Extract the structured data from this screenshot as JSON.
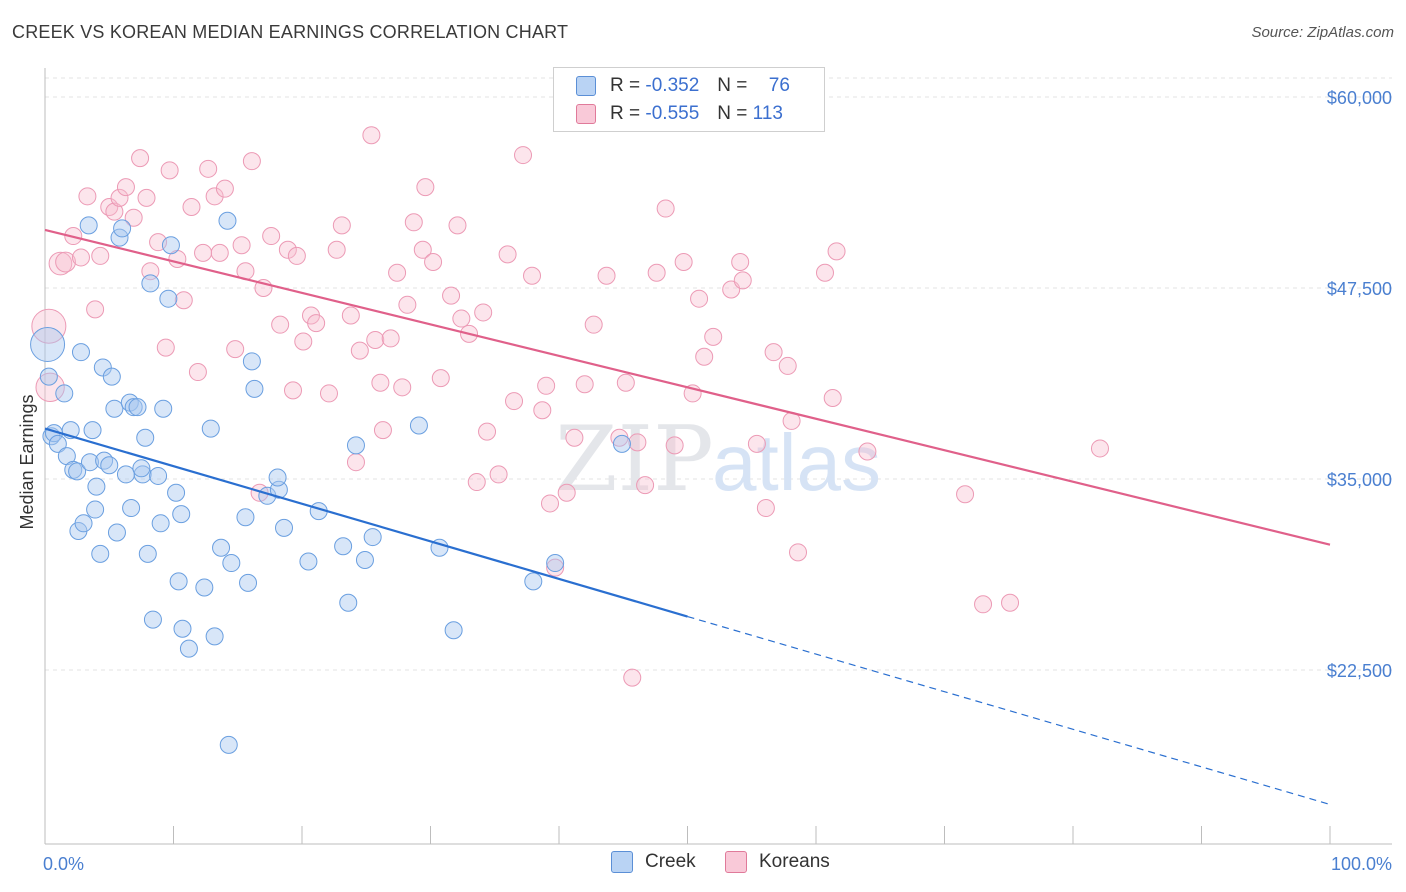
{
  "title": "CREEK VS KOREAN MEDIAN EARNINGS CORRELATION CHART",
  "source": "Source: ZipAtlas.com",
  "watermark": "ZIPatlas",
  "legend": {
    "rows": [
      {
        "r_label": "R =",
        "r_value": "-0.352",
        "n_label": "N =",
        "n_value": "76",
        "color": "#a9c8f0",
        "border": "#5b8fd6"
      },
      {
        "r_label": "R =",
        "r_value": "-0.555",
        "n_label": "N =",
        "n_value": "113",
        "color": "#f7bfd0",
        "border": "#e07a9a"
      }
    ]
  },
  "bottom_legend": [
    {
      "label": "Creek",
      "color": "#a9c8f0",
      "border": "#5b8fd6"
    },
    {
      "label": "Koreans",
      "color": "#f7bfd0",
      "border": "#e07a9a"
    }
  ],
  "chart_data": {
    "type": "scatter",
    "title": "CREEK VS KOREAN MEDIAN EARNINGS CORRELATION CHART",
    "ylabel": "Median Earnings",
    "xlabel": "",
    "x_tick_labels": [
      "0.0%",
      "100.0%"
    ],
    "y_tick_labels": [
      "$22,500",
      "$35,000",
      "$47,500",
      "$60,000"
    ],
    "y_ticks": [
      22500,
      35000,
      47500,
      60000
    ],
    "xlim": [
      0,
      100
    ],
    "ylim": [
      11500,
      61500
    ],
    "grid": true,
    "legend_position": "top-center",
    "series": [
      {
        "name": "Creek",
        "color": "#6a9fe0",
        "trend": {
          "x0": 0,
          "y0": 38300,
          "x1": 50,
          "y1": 26000,
          "dashed_to_x": 100,
          "dashed_to_y": 13700,
          "color": "#2a6fd0"
        },
        "points": [
          [
            0.2,
            43800,
            24
          ],
          [
            0.3,
            41700,
            12
          ],
          [
            0.5,
            37800,
            12
          ],
          [
            0.7,
            38000,
            12
          ],
          [
            1.0,
            37300,
            12
          ],
          [
            1.5,
            40600,
            12
          ],
          [
            1.7,
            36500,
            12
          ],
          [
            2.0,
            38200,
            12
          ],
          [
            2.2,
            35600,
            12
          ],
          [
            2.5,
            35500,
            12
          ],
          [
            2.6,
            31600,
            12
          ],
          [
            2.8,
            43300,
            12
          ],
          [
            3.0,
            32100,
            12
          ],
          [
            3.4,
            51600,
            12
          ],
          [
            3.5,
            36100,
            12
          ],
          [
            3.7,
            38200,
            12
          ],
          [
            3.9,
            33000,
            12
          ],
          [
            4.0,
            34500,
            12
          ],
          [
            4.3,
            30100,
            12
          ],
          [
            4.5,
            42300,
            12
          ],
          [
            4.6,
            36200,
            12
          ],
          [
            5.0,
            35900,
            12
          ],
          [
            5.2,
            41700,
            12
          ],
          [
            5.4,
            39600,
            12
          ],
          [
            5.6,
            31500,
            12
          ],
          [
            5.8,
            50800,
            12
          ],
          [
            6.0,
            51400,
            12
          ],
          [
            6.3,
            35300,
            12
          ],
          [
            6.6,
            40000,
            12
          ],
          [
            6.7,
            33100,
            12
          ],
          [
            6.9,
            39700,
            12
          ],
          [
            7.2,
            39700,
            12
          ],
          [
            7.6,
            35300,
            12
          ],
          [
            7.8,
            37700,
            12
          ],
          [
            8.0,
            30100,
            12
          ],
          [
            8.2,
            47800,
            12
          ],
          [
            8.4,
            25800,
            12
          ],
          [
            8.8,
            35200,
            12
          ],
          [
            9.0,
            32100,
            12
          ],
          [
            9.2,
            39600,
            12
          ],
          [
            9.6,
            46800,
            12
          ],
          [
            9.8,
            50300,
            12
          ],
          [
            10.2,
            34100,
            12
          ],
          [
            10.4,
            28300,
            12
          ],
          [
            10.6,
            32700,
            12
          ],
          [
            10.7,
            25200,
            12
          ],
          [
            11.2,
            23900,
            12
          ],
          [
            12.4,
            27900,
            12
          ],
          [
            12.9,
            38300,
            12
          ],
          [
            13.2,
            24700,
            12
          ],
          [
            13.7,
            30500,
            12
          ],
          [
            14.2,
            51900,
            12
          ],
          [
            14.5,
            29500,
            12
          ],
          [
            14.3,
            17600,
            12
          ],
          [
            15.6,
            32500,
            12
          ],
          [
            15.8,
            28200,
            12
          ],
          [
            16.1,
            42700,
            12
          ],
          [
            16.3,
            40900,
            12
          ],
          [
            17.3,
            33900,
            12
          ],
          [
            18.2,
            34300,
            12
          ],
          [
            18.6,
            31800,
            12
          ],
          [
            20.5,
            29600,
            12
          ],
          [
            21.3,
            32900,
            12
          ],
          [
            23.2,
            30600,
            12
          ],
          [
            23.6,
            26900,
            12
          ],
          [
            24.2,
            37200,
            12
          ],
          [
            24.9,
            29700,
            12
          ],
          [
            25.5,
            31200,
            12
          ],
          [
            29.1,
            38500,
            12
          ],
          [
            30.7,
            30500,
            12
          ],
          [
            31.8,
            25100,
            12
          ],
          [
            38.0,
            28300,
            12
          ],
          [
            39.7,
            29500,
            12
          ],
          [
            44.9,
            37300,
            12
          ],
          [
            18.1,
            35100,
            12
          ],
          [
            7.5,
            35700,
            12
          ]
        ]
      },
      {
        "name": "Koreans",
        "color": "#f29ab6",
        "trend": {
          "x0": 0,
          "y0": 51300,
          "x1": 100,
          "y1": 30700,
          "color": "#e0608a"
        },
        "points": [
          [
            0.3,
            45000,
            24
          ],
          [
            0.4,
            41000,
            20
          ],
          [
            1.2,
            49100,
            16
          ],
          [
            1.6,
            49200,
            14
          ],
          [
            2.2,
            50900,
            12
          ],
          [
            2.8,
            49500,
            12
          ],
          [
            3.3,
            53500,
            12
          ],
          [
            3.9,
            46100,
            12
          ],
          [
            4.3,
            49600,
            12
          ],
          [
            5.0,
            52800,
            12
          ],
          [
            5.4,
            52500,
            12
          ],
          [
            5.8,
            53400,
            12
          ],
          [
            6.3,
            54100,
            12
          ],
          [
            6.9,
            52100,
            12
          ],
          [
            7.4,
            56000,
            12
          ],
          [
            7.9,
            53400,
            12
          ],
          [
            8.2,
            48600,
            12
          ],
          [
            8.8,
            50500,
            12
          ],
          [
            9.4,
            43600,
            12
          ],
          [
            9.7,
            55200,
            12
          ],
          [
            10.3,
            49400,
            12
          ],
          [
            10.8,
            46700,
            12
          ],
          [
            11.4,
            52800,
            12
          ],
          [
            11.9,
            42000,
            12
          ],
          [
            12.3,
            49800,
            12
          ],
          [
            12.7,
            55300,
            12
          ],
          [
            13.2,
            53500,
            12
          ],
          [
            13.6,
            49800,
            12
          ],
          [
            14.0,
            54000,
            12
          ],
          [
            14.8,
            43500,
            12
          ],
          [
            15.3,
            50300,
            12
          ],
          [
            15.6,
            48600,
            12
          ],
          [
            16.1,
            55800,
            12
          ],
          [
            16.7,
            34100,
            12
          ],
          [
            17.0,
            47500,
            12
          ],
          [
            17.6,
            50900,
            12
          ],
          [
            18.3,
            45100,
            12
          ],
          [
            18.9,
            50000,
            12
          ],
          [
            19.3,
            40800,
            12
          ],
          [
            19.6,
            49600,
            12
          ],
          [
            20.1,
            44000,
            12
          ],
          [
            20.7,
            45700,
            12
          ],
          [
            21.1,
            45200,
            12
          ],
          [
            22.1,
            40600,
            12
          ],
          [
            22.7,
            50000,
            12
          ],
          [
            23.1,
            51600,
            12
          ],
          [
            23.8,
            45700,
            12
          ],
          [
            24.2,
            36100,
            12
          ],
          [
            24.5,
            43400,
            12
          ],
          [
            25.4,
            57500,
            12
          ],
          [
            25.7,
            44100,
            12
          ],
          [
            26.1,
            41300,
            12
          ],
          [
            26.9,
            44200,
            12
          ],
          [
            27.4,
            48500,
            12
          ],
          [
            27.8,
            41000,
            12
          ],
          [
            28.2,
            46400,
            12
          ],
          [
            28.7,
            51800,
            12
          ],
          [
            29.4,
            50000,
            12
          ],
          [
            29.6,
            54100,
            12
          ],
          [
            30.2,
            49200,
            12
          ],
          [
            30.8,
            41600,
            12
          ],
          [
            31.6,
            47000,
            12
          ],
          [
            32.1,
            51600,
            12
          ],
          [
            32.4,
            45500,
            12
          ],
          [
            33.0,
            44500,
            12
          ],
          [
            33.6,
            34800,
            12
          ],
          [
            34.1,
            45900,
            12
          ],
          [
            34.4,
            38100,
            12
          ],
          [
            35.3,
            35300,
            12
          ],
          [
            36.0,
            49700,
            12
          ],
          [
            36.5,
            40100,
            12
          ],
          [
            37.2,
            56200,
            12
          ],
          [
            37.9,
            48300,
            12
          ],
          [
            38.7,
            39500,
            12
          ],
          [
            39.0,
            41100,
            12
          ],
          [
            39.3,
            33400,
            12
          ],
          [
            39.7,
            29200,
            12
          ],
          [
            40.6,
            34100,
            12
          ],
          [
            41.2,
            37700,
            12
          ],
          [
            42.0,
            41200,
            12
          ],
          [
            42.7,
            45100,
            12
          ],
          [
            43.7,
            48300,
            12
          ],
          [
            44.7,
            37700,
            12
          ],
          [
            45.2,
            41300,
            12
          ],
          [
            45.7,
            22000,
            12
          ],
          [
            46.1,
            37400,
            12
          ],
          [
            46.7,
            34600,
            12
          ],
          [
            47.6,
            48500,
            12
          ],
          [
            48.3,
            52700,
            12
          ],
          [
            49.0,
            37200,
            12
          ],
          [
            49.7,
            49200,
            12
          ],
          [
            50.4,
            40600,
            12
          ],
          [
            50.9,
            46800,
            12
          ],
          [
            51.3,
            43000,
            12
          ],
          [
            52.0,
            44300,
            12
          ],
          [
            53.4,
            47400,
            12
          ],
          [
            54.1,
            49200,
            12
          ],
          [
            54.3,
            48000,
            12
          ],
          [
            55.4,
            37300,
            12
          ],
          [
            56.1,
            33100,
            12
          ],
          [
            56.7,
            43300,
            12
          ],
          [
            57.8,
            42400,
            12
          ],
          [
            58.1,
            38800,
            12
          ],
          [
            58.6,
            30200,
            12
          ],
          [
            60.7,
            48500,
            12
          ],
          [
            61.6,
            49900,
            12
          ],
          [
            61.3,
            40300,
            12
          ],
          [
            64.0,
            36800,
            12
          ],
          [
            71.6,
            34000,
            12
          ],
          [
            73.0,
            26800,
            12
          ],
          [
            75.1,
            26900,
            12
          ],
          [
            82.1,
            37000,
            12
          ],
          [
            26.3,
            38200,
            12
          ]
        ]
      }
    ]
  }
}
